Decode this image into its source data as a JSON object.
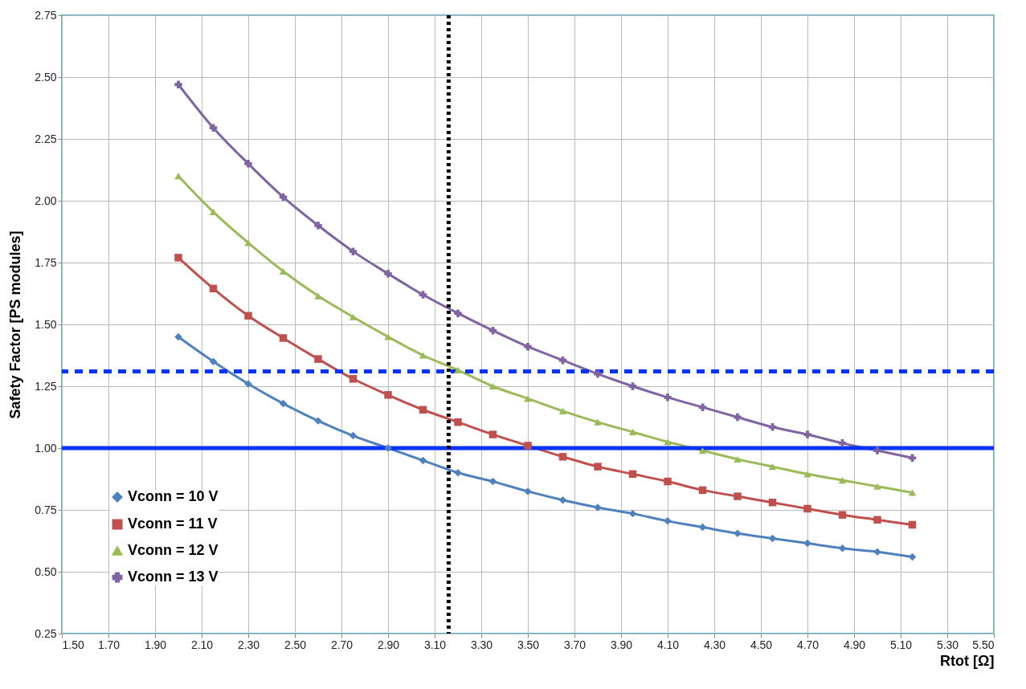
{
  "chart_data": {
    "type": "line",
    "xlabel": "Rtot [Ω]",
    "ylabel": "Safety Factor [PS modules]",
    "x": [
      2.0,
      2.15,
      2.3,
      2.45,
      2.6,
      2.75,
      2.9,
      3.05,
      3.2,
      3.35,
      3.5,
      3.65,
      3.8,
      3.95,
      4.1,
      4.25,
      4.4,
      4.55,
      4.7,
      4.85,
      5.0,
      5.15
    ],
    "series": [
      {
        "name": "Vconn = 10 V",
        "color": "#4f81bd",
        "marker": "diamond",
        "values": [
          1.45,
          1.35,
          1.26,
          1.18,
          1.11,
          1.05,
          1.0,
          0.95,
          0.9,
          0.865,
          0.825,
          0.79,
          0.76,
          0.735,
          0.705,
          0.68,
          0.655,
          0.635,
          0.615,
          0.595,
          0.58,
          0.56
        ]
      },
      {
        "name": "Vconn = 11 V",
        "color": "#c0504d",
        "marker": "square",
        "values": [
          1.77,
          1.645,
          1.535,
          1.445,
          1.36,
          1.28,
          1.215,
          1.155,
          1.105,
          1.055,
          1.01,
          0.965,
          0.925,
          0.895,
          0.865,
          0.83,
          0.805,
          0.78,
          0.755,
          0.73,
          0.71,
          0.69
        ]
      },
      {
        "name": "Vconn = 12 V",
        "color": "#9bbb59",
        "marker": "triangle",
        "values": [
          2.1,
          1.955,
          1.83,
          1.715,
          1.615,
          1.53,
          1.45,
          1.375,
          1.315,
          1.25,
          1.2,
          1.15,
          1.105,
          1.065,
          1.025,
          0.99,
          0.955,
          0.925,
          0.895,
          0.87,
          0.845,
          0.82
        ]
      },
      {
        "name": "Vconn = 13 V",
        "color": "#8064a2",
        "marker": "cross",
        "values": [
          2.47,
          2.295,
          2.15,
          2.015,
          1.9,
          1.795,
          1.705,
          1.62,
          1.545,
          1.475,
          1.41,
          1.355,
          1.3,
          1.25,
          1.205,
          1.165,
          1.125,
          1.085,
          1.055,
          1.02,
          0.99,
          0.96
        ]
      }
    ],
    "xlim": [
      1.5,
      5.5
    ],
    "xticks": [
      {
        "value": 1.5,
        "label": "1.50"
      },
      {
        "value": 1.7,
        "label": "1.70"
      },
      {
        "value": 1.9,
        "label": "1.90"
      },
      {
        "value": 2.1,
        "label": "2.10"
      },
      {
        "value": 2.3,
        "label": "2.30"
      },
      {
        "value": 2.5,
        "label": "2.50"
      },
      {
        "value": 2.7,
        "label": "2.70"
      },
      {
        "value": 2.9,
        "label": "2.90"
      },
      {
        "value": 3.1,
        "label": "3.10"
      },
      {
        "value": 3.3,
        "label": "3.30"
      },
      {
        "value": 3.5,
        "label": "3.50"
      },
      {
        "value": 3.7,
        "label": "3.70"
      },
      {
        "value": 3.9,
        "label": "3.90"
      },
      {
        "value": 4.1,
        "label": "4.10"
      },
      {
        "value": 4.3,
        "label": "4.30"
      },
      {
        "value": 4.5,
        "label": "4.50"
      },
      {
        "value": 4.7,
        "label": "4.70"
      },
      {
        "value": 4.9,
        "label": "4.90"
      },
      {
        "value": 5.1,
        "label": "5.10"
      },
      {
        "value": 5.3,
        "label": "5.30"
      },
      {
        "value": 5.5,
        "label": "5.50"
      }
    ],
    "ylim": [
      0.25,
      2.75
    ],
    "yticks": [
      0.25,
      {
        "value": 0.5,
        "label": "0.50"
      },
      0.75,
      {
        "value": 1,
        "label": "1.00"
      },
      1.25,
      {
        "value": 1.5,
        "label": "1.50"
      },
      1.75,
      {
        "value": 2,
        "label": "2.00"
      },
      2.25,
      {
        "value": 2.5,
        "label": "2.50"
      },
      2.75
    ],
    "ref_lines": [
      {
        "axis": "y",
        "value": 1.31,
        "color": "#0033ff",
        "line_style": "dashed"
      },
      {
        "axis": "y",
        "value": 1.0,
        "color": "#0033ff",
        "line_style": "solid"
      },
      {
        "axis": "x",
        "value": 3.16,
        "color": "#000000",
        "line_style": "dotted"
      }
    ],
    "grid": true,
    "legend": "bottom left",
    "line_style": "solid"
  }
}
